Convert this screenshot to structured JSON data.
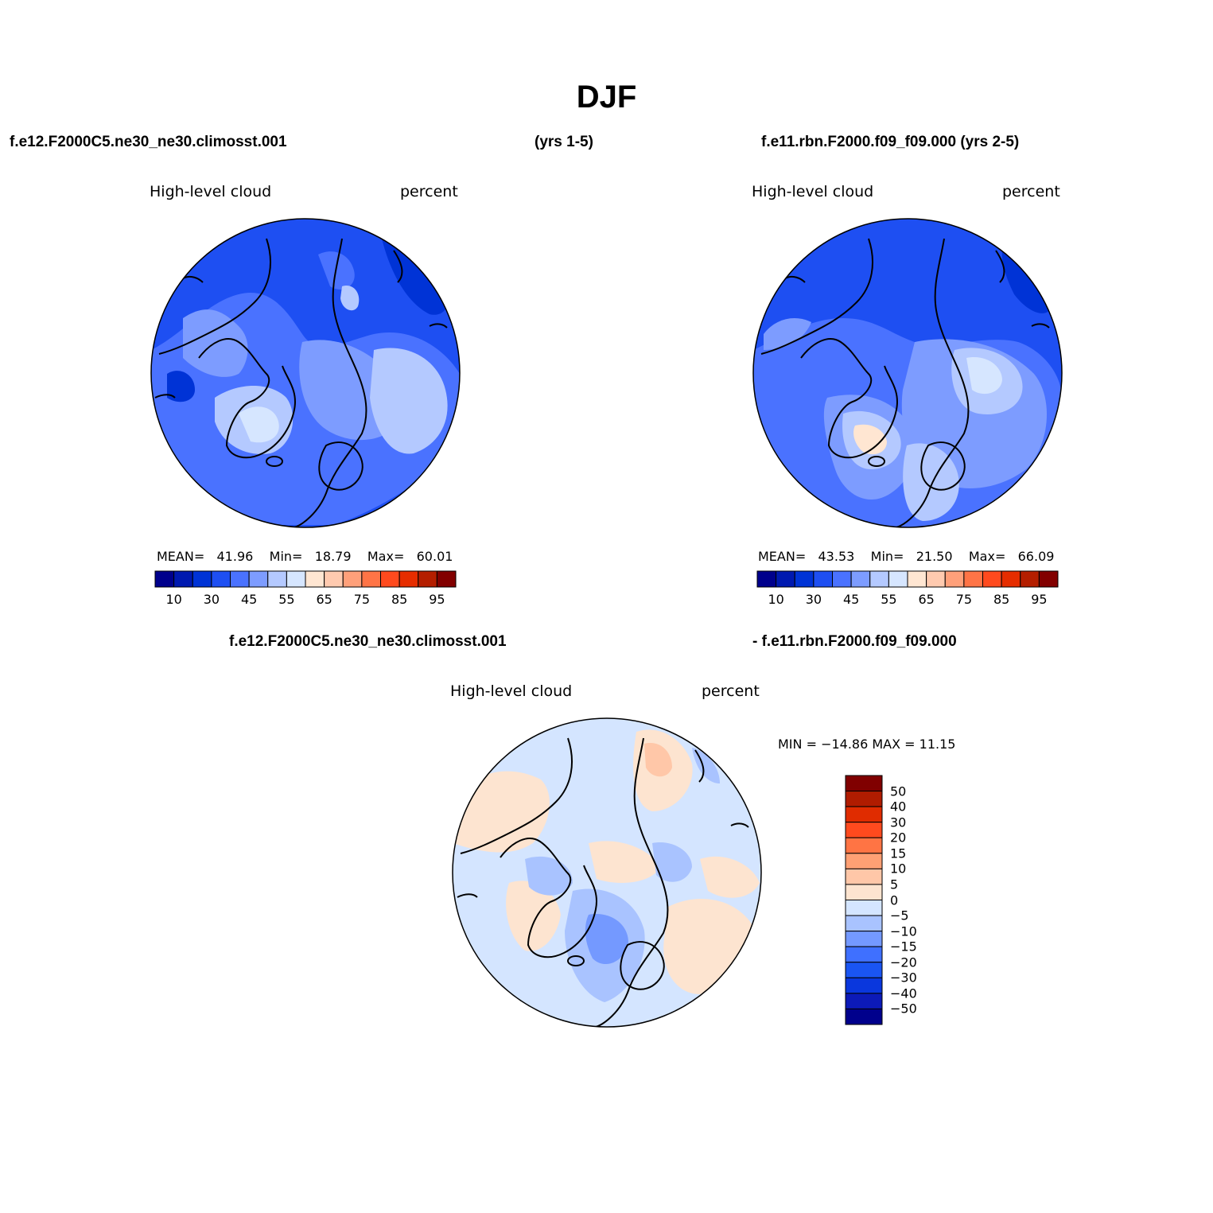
{
  "figure": {
    "title": "DJF"
  },
  "header": {
    "case_left": "f.e12.F2000C5.ne30_ne30.climosst.001",
    "years_left": "(yrs 1-5)",
    "case_right": "f.e11.rbn.F2000.f09_f09.000 (yrs 2-5)",
    "diff_case_a": "f.e12.F2000C5.ne30_ne30.climosst.001",
    "diff_case_b": "- f.e11.rbn.F2000.f09_f09.000"
  },
  "colors": {
    "abs_scale": [
      "#00008c",
      "#0019b0",
      "#0033d6",
      "#1e4ff2",
      "#4a72ff",
      "#7d9cff",
      "#b4c9ff",
      "#d6e6ff",
      "#ffe6d2",
      "#ffcaaf",
      "#ffa07a",
      "#ff7446",
      "#ff4a1e",
      "#e62d00",
      "#b41e00",
      "#820000"
    ],
    "diff_scale": [
      "#00008c",
      "#0c1ab8",
      "#0a37dd",
      "#1a55f2",
      "#3f70ff",
      "#7499ff",
      "#a9c3ff",
      "#d4e5ff",
      "#fde4d0",
      "#ffc7a8",
      "#ffa074",
      "#ff7444",
      "#ff4a1e",
      "#e02c00",
      "#b01c00",
      "#800000"
    ]
  },
  "panels": [
    {
      "variable": "High-level cloud",
      "units": "percent",
      "stats": {
        "mean_label": "MEAN=",
        "mean": "41.96",
        "min_label": "Min=",
        "min": "18.79",
        "max_label": "Max=",
        "max": "60.01"
      },
      "colorbar_ticks": [
        "10",
        "30",
        "45",
        "55",
        "65",
        "75",
        "85",
        "95"
      ]
    },
    {
      "variable": "High-level cloud",
      "units": "percent",
      "stats": {
        "mean_label": "MEAN=",
        "mean": "43.53",
        "min_label": "Min=",
        "min": "21.50",
        "max_label": "Max=",
        "max": "66.09"
      },
      "colorbar_ticks": [
        "10",
        "30",
        "45",
        "55",
        "65",
        "75",
        "85",
        "95"
      ]
    },
    {
      "variable": "High-level cloud",
      "units": "percent",
      "minmax": "MIN = −14.86  MAX =   11.15",
      "colorbar_ticks": [
        "50",
        "40",
        "30",
        "20",
        "15",
        "10",
        "5",
        "0",
        "−5",
        "−10",
        "−15",
        "−20",
        "−30",
        "−40",
        "−50"
      ]
    }
  ]
}
